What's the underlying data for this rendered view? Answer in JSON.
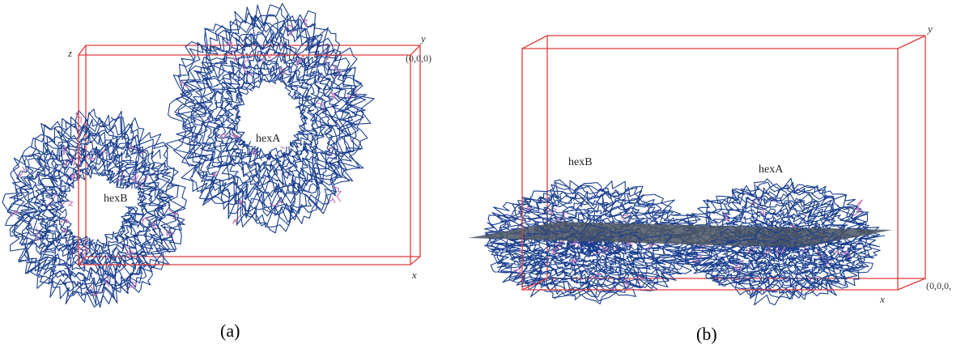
{
  "panels": [
    {
      "caption": "(a)",
      "axis_labels": {
        "y": "y",
        "z": "z",
        "x": "x"
      },
      "origin_label": "(0,0,0)",
      "molecule_labels": {
        "hexA": "hexA",
        "hexB": "hexB"
      }
    },
    {
      "caption": "(b)",
      "axis_labels": {
        "y": "y",
        "x": "x"
      },
      "origin_label": "(0,0,0,",
      "molecule_labels": {
        "hexB": "hexB",
        "hexA": "hexA"
      }
    }
  ],
  "colors": {
    "box": "#e03b3b",
    "backbone": "#1b3f8f",
    "highlight": "#c77ab8",
    "plane": "#4a5563"
  }
}
